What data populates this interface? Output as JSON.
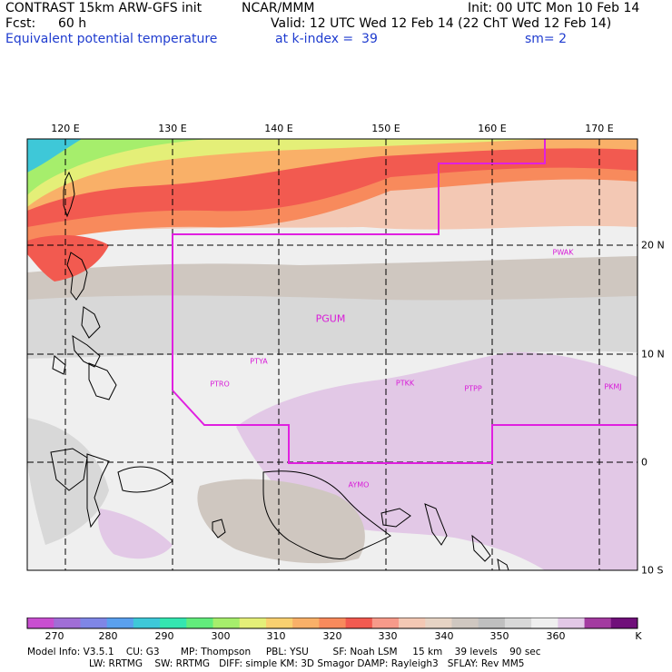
{
  "header": {
    "model_title": "CONTRAST 15km ARW-GFS init",
    "center": "NCAR/MMM",
    "init": "Init: 00 UTC Mon 10 Feb 14",
    "fcst_label": "Fcst:",
    "fcst_value": "60 h",
    "valid": "Valid: 12 UTC Wed 12 Feb 14 (22 ChT Wed 12 Feb 14)",
    "field": "Equivalent potential temperature",
    "level": "at k-index =  39",
    "smoothing": "sm= 2"
  },
  "map": {
    "lon_labels": [
      "120 E",
      "130 E",
      "140 E",
      "150 E",
      "160 E",
      "170 E"
    ],
    "lat_labels": [
      "20 N",
      "10 N",
      "0",
      "10 S"
    ],
    "stations": [
      "PWAK",
      "PGUM",
      "PTYA",
      "PTRO",
      "PTKK",
      "PTPP",
      "PKMJ",
      "AYMO"
    ]
  },
  "colorbar": {
    "labels": [
      "270",
      "280",
      "290",
      "300",
      "310",
      "320",
      "330",
      "340",
      "350",
      "360",
      "K"
    ],
    "colors": [
      "#c94fd0",
      "#a06ed6",
      "#7f86e6",
      "#5aa0ee",
      "#3ec8d8",
      "#34e6b0",
      "#62ec7c",
      "#a6ee6c",
      "#e4ef78",
      "#f9d070",
      "#f9b068",
      "#f88a5c",
      "#f25a50",
      "#f79a8a",
      "#f3c8b4",
      "#e6d3c4",
      "#cfc7c0",
      "#bfbfbf",
      "#d8d8d8",
      "#efefef",
      "#e2c8e6",
      "#a33ba0",
      "#70107a"
    ]
  },
  "footer": {
    "line1": "Model Info: V3.5.1    CU: G3       MP: Thompson     PBL: YSU        SF: Noah LSM     15 km    39 levels    90 sec",
    "line2": "LW: RRTMG    SW: RRTMG   DIFF: simple KM: 3D Smagor DAMP: Rayleigh3   SFLAY: Rev MM5"
  }
}
